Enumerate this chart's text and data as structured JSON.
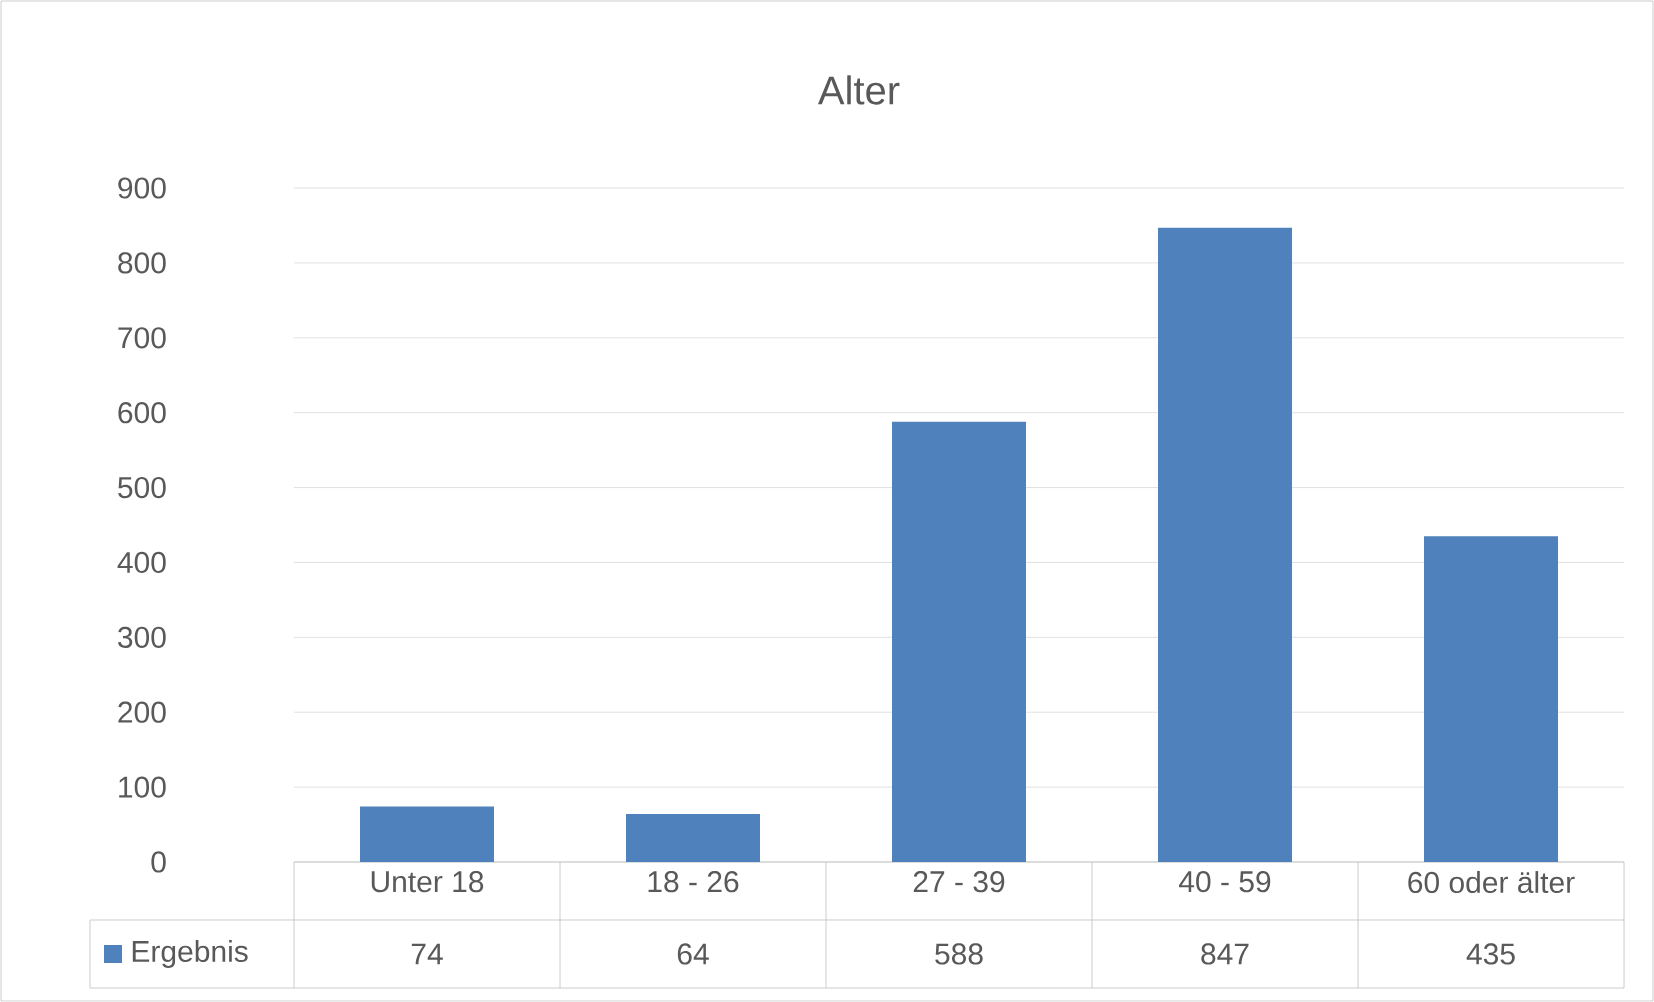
{
  "chart_data": {
    "type": "bar",
    "title": "Alter",
    "categories": [
      "Unter 18",
      "18 - 26",
      "27 - 39",
      "40 - 59",
      "60  oder älter"
    ],
    "series": [
      {
        "name": "Ergebnis",
        "color": "#4f81bd",
        "values": [
          74,
          64,
          588,
          847,
          435
        ]
      }
    ],
    "ylim": [
      0,
      900
    ],
    "yticks": [
      0,
      100,
      200,
      300,
      400,
      500,
      600,
      700,
      800,
      900
    ],
    "grid": "y",
    "legend": "bottom",
    "data_labels": true
  }
}
